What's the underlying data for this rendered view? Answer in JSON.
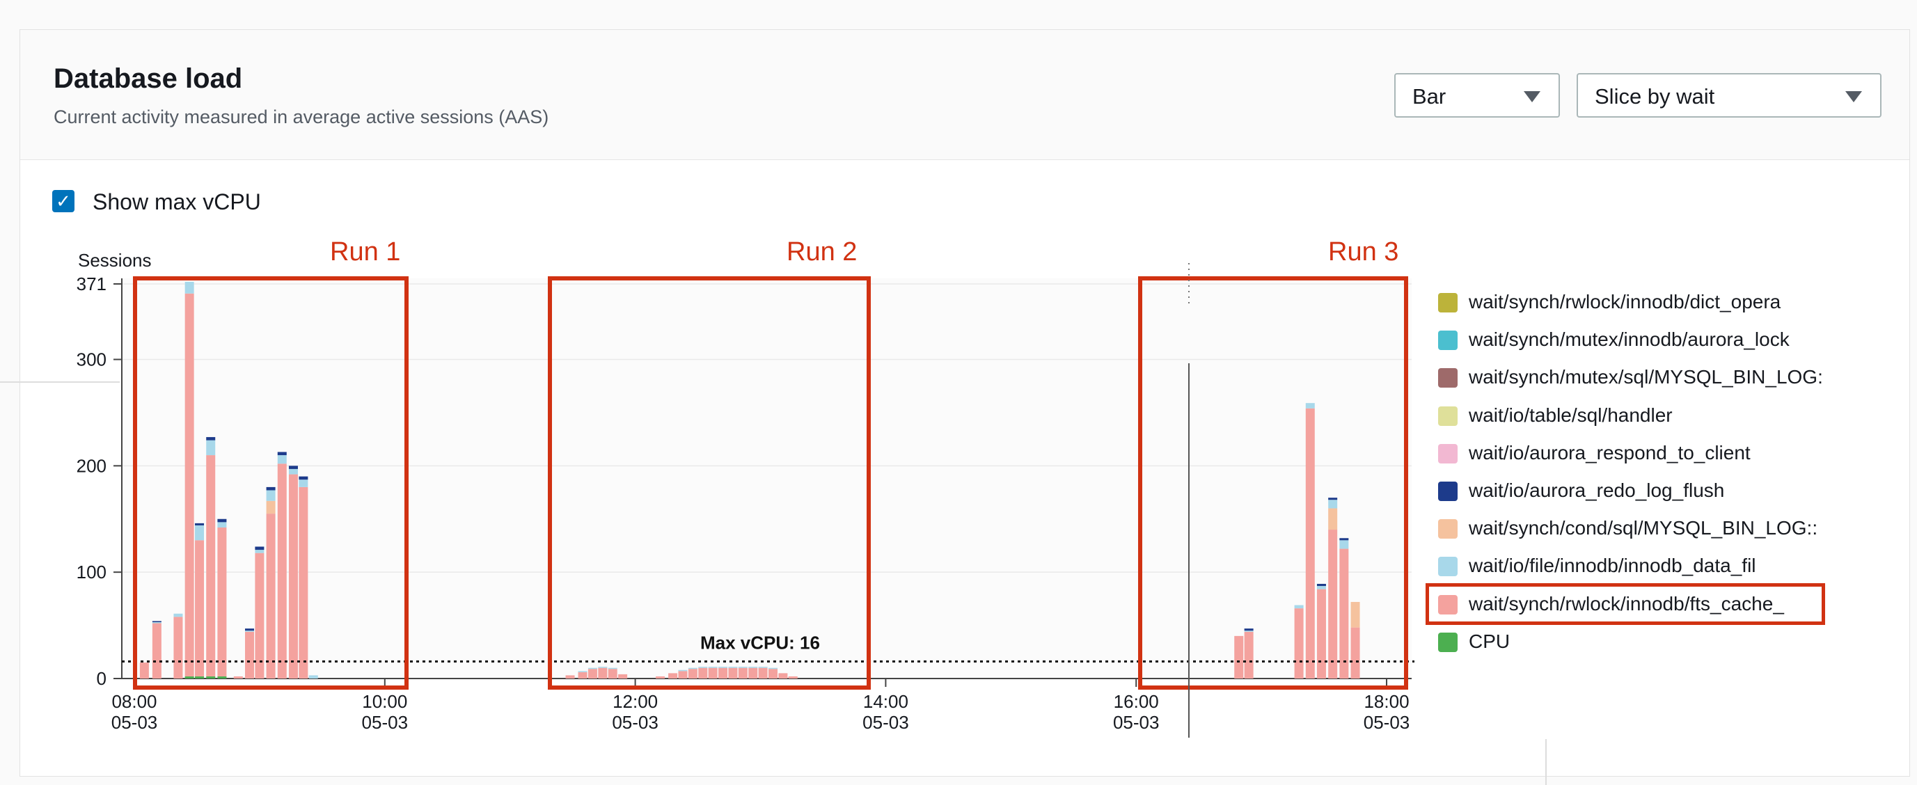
{
  "header": {
    "title": "Database load",
    "subtitle": "Current activity measured in average active sessions (AAS)",
    "chart_type_select": "Bar",
    "slice_select": "Slice by wait"
  },
  "show_max_vcpu": {
    "label": "Show max vCPU",
    "checked": true
  },
  "colors": {
    "highlight": "#d13212",
    "fts_cache": "#f4a29e",
    "aurora_redo_log_flush": "#1d3b8b",
    "io_file_innodb": "#a8d8ea",
    "cond_mysql_bin_log": "#f5c29e",
    "cpu": "#4caf50"
  },
  "annotations": {
    "run1": "Run 1",
    "run2": "Run 2",
    "run3": "Run 3"
  },
  "legend": [
    {
      "label": "wait/synch/rwlock/innodb/dict_opera",
      "color": "#bcb33a"
    },
    {
      "label": "wait/synch/mutex/innodb/aurora_lock",
      "color": "#4bbfcf"
    },
    {
      "label": "wait/synch/mutex/sql/MYSQL_BIN_LOG:",
      "color": "#9e6a6a"
    },
    {
      "label": "wait/io/table/sql/handler",
      "color": "#dfe09a"
    },
    {
      "label": "wait/io/aurora_respond_to_client",
      "color": "#f2b8d2"
    },
    {
      "label": "wait/io/aurora_redo_log_flush",
      "color": "#1d3b8b"
    },
    {
      "label": "wait/synch/cond/sql/MYSQL_BIN_LOG::",
      "color": "#f5c29e"
    },
    {
      "label": "wait/io/file/innodb/innodb_data_fil",
      "color": "#a8d8ea"
    },
    {
      "label": "wait/synch/rwlock/innodb/fts_cache_",
      "color": "#f4a29e",
      "highlighted": true
    },
    {
      "label": "CPU",
      "color": "#4caf50"
    }
  ],
  "chart_data": {
    "type": "bar",
    "stacked": true,
    "ylabel": "Sessions",
    "ylim": [
      0,
      371
    ],
    "yticks": [
      0,
      100,
      200,
      300,
      371
    ],
    "xticks": [
      {
        "time": "08:00",
        "date": "05-03"
      },
      {
        "time": "10:00",
        "date": "05-03"
      },
      {
        "time": "12:00",
        "date": "05-03"
      },
      {
        "time": "14:00",
        "date": "05-03"
      },
      {
        "time": "16:00",
        "date": "05-03"
      },
      {
        "time": "18:00",
        "date": "05-03"
      }
    ],
    "x_range_hours": [
      7.9,
      18.2
    ],
    "max_vcpu": {
      "value": 16,
      "label": "Max vCPU: 16"
    },
    "bars": [
      {
        "t": 8.08,
        "fts": 15,
        "other": 0
      },
      {
        "t": 8.18,
        "fts": 52,
        "redo": 1,
        "other": 1
      },
      {
        "t": 8.35,
        "fts": 58,
        "other": 3
      },
      {
        "t": 8.44,
        "fts": 360,
        "other": 11,
        "cpu": 2
      },
      {
        "t": 8.52,
        "fts": 128,
        "other": 14,
        "redo": 2,
        "cpu": 2
      },
      {
        "t": 8.61,
        "fts": 208,
        "other": 14,
        "redo": 3,
        "cpu": 2
      },
      {
        "t": 8.7,
        "fts": 140,
        "other": 5,
        "redo": 3,
        "cpu": 2
      },
      {
        "t": 8.83,
        "fts": 2,
        "other": 0
      },
      {
        "t": 8.92,
        "fts": 44,
        "redo": 2,
        "other": 1
      },
      {
        "t": 9.0,
        "fts": 118,
        "redo": 3,
        "other": 3
      },
      {
        "t": 9.09,
        "fts": 155,
        "cond": 12,
        "other": 10,
        "redo": 3
      },
      {
        "t": 9.18,
        "fts": 202,
        "other": 8,
        "redo": 3
      },
      {
        "t": 9.27,
        "fts": 192,
        "other": 5,
        "redo": 3
      },
      {
        "t": 9.35,
        "fts": 180,
        "other": 7,
        "redo": 3
      },
      {
        "t": 9.43,
        "fts": 0,
        "other": 3
      },
      {
        "t": 11.48,
        "fts": 3,
        "other": 0
      },
      {
        "t": 11.58,
        "fts": 6,
        "other": 1
      },
      {
        "t": 11.66,
        "fts": 9,
        "other": 1
      },
      {
        "t": 11.74,
        "fts": 10,
        "other": 1
      },
      {
        "t": 11.82,
        "fts": 9,
        "other": 1
      },
      {
        "t": 11.9,
        "fts": 4,
        "other": 0
      },
      {
        "t": 12.2,
        "fts": 2,
        "other": 0
      },
      {
        "t": 12.3,
        "fts": 5,
        "other": 0
      },
      {
        "t": 12.38,
        "fts": 7,
        "other": 1
      },
      {
        "t": 12.46,
        "fts": 9,
        "other": 1
      },
      {
        "t": 12.54,
        "fts": 10,
        "other": 1
      },
      {
        "t": 12.62,
        "fts": 10,
        "other": 1
      },
      {
        "t": 12.7,
        "fts": 10,
        "other": 1
      },
      {
        "t": 12.78,
        "fts": 10,
        "other": 1
      },
      {
        "t": 12.86,
        "fts": 10,
        "other": 1
      },
      {
        "t": 12.94,
        "fts": 10,
        "other": 1
      },
      {
        "t": 13.02,
        "fts": 10,
        "other": 1
      },
      {
        "t": 13.1,
        "fts": 9,
        "other": 1
      },
      {
        "t": 13.18,
        "fts": 5,
        "other": 0
      },
      {
        "t": 13.26,
        "fts": 2,
        "other": 0
      },
      {
        "t": 16.82,
        "fts": 40,
        "other": 0
      },
      {
        "t": 16.9,
        "fts": 44,
        "redo": 2,
        "other": 1
      },
      {
        "t": 17.3,
        "fts": 66,
        "other": 3
      },
      {
        "t": 17.39,
        "fts": 254,
        "other": 5
      },
      {
        "t": 17.48,
        "fts": 84,
        "redo": 2,
        "other": 3
      },
      {
        "t": 17.57,
        "fts": 140,
        "cond": 20,
        "other": 8,
        "redo": 2
      },
      {
        "t": 17.66,
        "fts": 122,
        "other": 8,
        "redo": 2
      },
      {
        "t": 17.75,
        "fts": 48,
        "cond": 24,
        "other": 0
      }
    ]
  }
}
